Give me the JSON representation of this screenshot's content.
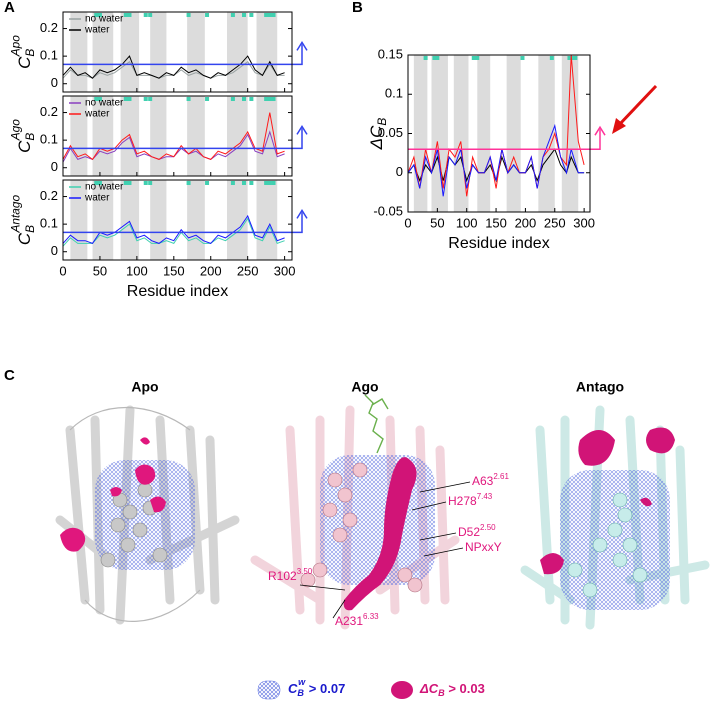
{
  "chart_data": [
    {
      "type": "line",
      "ylabel": {
        "main": "C",
        "sub": "B",
        "sup": "Apo"
      },
      "x": [
        0,
        10,
        20,
        30,
        40,
        50,
        60,
        70,
        80,
        90,
        100,
        110,
        120,
        130,
        140,
        150,
        160,
        170,
        180,
        190,
        200,
        210,
        220,
        230,
        240,
        250,
        260,
        270,
        280,
        290,
        300
      ],
      "series": [
        {
          "name": "no water",
          "color": "#9aa3a3",
          "values": [
            0.02,
            0.05,
            0.03,
            0.03,
            0.02,
            0.04,
            0.03,
            0.04,
            0.06,
            0.08,
            0.03,
            0.03,
            0.03,
            0.02,
            0.03,
            0.03,
            0.05,
            0.03,
            0.04,
            0.03,
            0.02,
            0.03,
            0.03,
            0.04,
            0.06,
            0.08,
            0.04,
            0.03,
            0.07,
            0.03,
            0.03
          ]
        },
        {
          "name": "water",
          "color": "#000000",
          "values": [
            0.03,
            0.06,
            0.03,
            0.04,
            0.02,
            0.05,
            0.04,
            0.05,
            0.07,
            0.1,
            0.03,
            0.04,
            0.03,
            0.02,
            0.04,
            0.03,
            0.06,
            0.04,
            0.05,
            0.03,
            0.02,
            0.04,
            0.03,
            0.05,
            0.07,
            0.1,
            0.05,
            0.03,
            0.08,
            0.03,
            0.04
          ]
        }
      ],
      "xlim": [
        0,
        310
      ],
      "ylim": [
        -0.03,
        0.26
      ],
      "xticks": [
        0,
        50,
        100,
        150,
        200,
        250,
        300
      ],
      "yticks": [
        0,
        0.1,
        0.2
      ],
      "helix_bands": [
        [
          10,
          33
        ],
        [
          40,
          68
        ],
        [
          78,
          103
        ],
        [
          118,
          140
        ],
        [
          168,
          192
        ],
        [
          222,
          250
        ],
        [
          262,
          290
        ]
      ],
      "site_residues": [
        45,
        50,
        85,
        90,
        112,
        118,
        170,
        195,
        230,
        245,
        255,
        275,
        280,
        285
      ],
      "site_color": "#40d0b0",
      "band_color": "#dcdcdc",
      "threshold": 0.07,
      "threshold_color": "#3344ee"
    },
    {
      "type": "line",
      "ylabel": {
        "main": "C",
        "sub": "B",
        "sup": "Ago"
      },
      "x": [
        0,
        10,
        20,
        30,
        40,
        50,
        60,
        70,
        80,
        90,
        100,
        110,
        120,
        130,
        140,
        150,
        160,
        170,
        180,
        190,
        200,
        210,
        220,
        230,
        240,
        250,
        260,
        270,
        280,
        290,
        300
      ],
      "series": [
        {
          "name": "no water",
          "color": "#8a3fc0",
          "values": [
            0.02,
            0.07,
            0.03,
            0.04,
            0.03,
            0.06,
            0.05,
            0.06,
            0.09,
            0.11,
            0.04,
            0.05,
            0.04,
            0.03,
            0.04,
            0.04,
            0.07,
            0.05,
            0.06,
            0.04,
            0.03,
            0.05,
            0.04,
            0.06,
            0.08,
            0.12,
            0.06,
            0.05,
            0.13,
            0.04,
            0.05
          ]
        },
        {
          "name": "water",
          "color": "#ff1a1a",
          "values": [
            0.03,
            0.08,
            0.04,
            0.05,
            0.03,
            0.07,
            0.06,
            0.07,
            0.1,
            0.12,
            0.05,
            0.06,
            0.04,
            0.03,
            0.05,
            0.04,
            0.08,
            0.05,
            0.07,
            0.04,
            0.03,
            0.06,
            0.05,
            0.07,
            0.09,
            0.13,
            0.07,
            0.06,
            0.2,
            0.05,
            0.06
          ]
        }
      ],
      "xlim": [
        0,
        310
      ],
      "ylim": [
        -0.03,
        0.26
      ],
      "xticks": [
        0,
        50,
        100,
        150,
        200,
        250,
        300
      ],
      "yticks": [
        0,
        0.1,
        0.2
      ],
      "helix_bands": [
        [
          10,
          33
        ],
        [
          40,
          68
        ],
        [
          78,
          103
        ],
        [
          118,
          140
        ],
        [
          168,
          192
        ],
        [
          222,
          250
        ],
        [
          262,
          290
        ]
      ],
      "site_residues": [
        45,
        50,
        85,
        90,
        112,
        118,
        170,
        195,
        230,
        245,
        255,
        275,
        280,
        285
      ],
      "site_color": "#40d0b0",
      "band_color": "#dcdcdc",
      "threshold": 0.07,
      "threshold_color": "#3344ee"
    },
    {
      "type": "line",
      "ylabel": {
        "main": "C",
        "sub": "B",
        "sup": "Antago"
      },
      "xlabel": "Residue index",
      "x": [
        0,
        10,
        20,
        30,
        40,
        50,
        60,
        70,
        80,
        90,
        100,
        110,
        120,
        130,
        140,
        150,
        160,
        170,
        180,
        190,
        200,
        210,
        220,
        230,
        240,
        250,
        260,
        270,
        280,
        290,
        300
      ],
      "series": [
        {
          "name": "no water",
          "color": "#40d0b0",
          "values": [
            0.02,
            0.05,
            0.03,
            0.03,
            0.03,
            0.06,
            0.05,
            0.06,
            0.08,
            0.1,
            0.04,
            0.05,
            0.03,
            0.03,
            0.04,
            0.03,
            0.07,
            0.04,
            0.05,
            0.03,
            0.03,
            0.05,
            0.04,
            0.06,
            0.08,
            0.12,
            0.05,
            0.04,
            0.09,
            0.03,
            0.04
          ]
        },
        {
          "name": "water",
          "color": "#1a1aff",
          "values": [
            0.03,
            0.06,
            0.04,
            0.04,
            0.03,
            0.07,
            0.06,
            0.07,
            0.09,
            0.11,
            0.05,
            0.06,
            0.04,
            0.03,
            0.05,
            0.04,
            0.08,
            0.05,
            0.06,
            0.04,
            0.03,
            0.06,
            0.05,
            0.07,
            0.09,
            0.13,
            0.06,
            0.05,
            0.1,
            0.04,
            0.05
          ]
        }
      ],
      "xlim": [
        0,
        310
      ],
      "ylim": [
        -0.03,
        0.26
      ],
      "xticks": [
        0,
        50,
        100,
        150,
        200,
        250,
        300
      ],
      "yticks": [
        0,
        0.1,
        0.2
      ],
      "helix_bands": [
        [
          10,
          33
        ],
        [
          40,
          68
        ],
        [
          78,
          103
        ],
        [
          118,
          140
        ],
        [
          168,
          192
        ],
        [
          222,
          250
        ],
        [
          262,
          290
        ]
      ],
      "site_residues": [
        45,
        50,
        85,
        90,
        112,
        118,
        170,
        195,
        230,
        245,
        255,
        275,
        280,
        285
      ],
      "site_color": "#40d0b0",
      "band_color": "#dcdcdc",
      "threshold": 0.07,
      "threshold_color": "#3344ee"
    },
    {
      "type": "line",
      "ylabel": {
        "main": "ΔC",
        "sub": "B"
      },
      "xlabel": "Residue index",
      "x": [
        0,
        10,
        20,
        30,
        40,
        50,
        60,
        70,
        80,
        90,
        100,
        110,
        120,
        130,
        140,
        150,
        160,
        170,
        180,
        190,
        200,
        210,
        220,
        230,
        240,
        250,
        260,
        270,
        278,
        290,
        300
      ],
      "series": [
        {
          "color": "#000000",
          "values": [
            0,
            0.01,
            -0.01,
            0.01,
            0,
            0.02,
            -0.01,
            0.02,
            0.01,
            0.02,
            -0.01,
            0.01,
            0,
            0,
            0.01,
            -0.01,
            0.02,
            0,
            0.01,
            0,
            0,
            0.01,
            -0.01,
            0.01,
            0.02,
            0.03,
            0.01,
            0,
            0.02,
            0,
            0
          ]
        },
        {
          "color": "#ff1a1a",
          "values": [
            0,
            0.02,
            -0.02,
            0.03,
            0,
            0.04,
            -0.02,
            0.03,
            0.02,
            0.04,
            -0.03,
            0.02,
            0,
            0,
            0.02,
            -0.02,
            0.03,
            0,
            0.02,
            0,
            0,
            0.02,
            -0.02,
            0.02,
            0.03,
            0.05,
            0.02,
            0.01,
            0.15,
            0.04,
            0.01
          ]
        },
        {
          "color": "#1a1aff",
          "values": [
            0,
            0.01,
            -0.02,
            0.02,
            0,
            0.03,
            -0.03,
            0.02,
            0.01,
            0.03,
            -0.02,
            0.01,
            0,
            0,
            0.02,
            -0.01,
            0.03,
            0,
            0.01,
            0,
            0,
            0.02,
            -0.02,
            0.02,
            0.04,
            0.06,
            0.02,
            0,
            0.03,
            0,
            0
          ]
        }
      ],
      "xlim": [
        0,
        310
      ],
      "ylim": [
        -0.05,
        0.15
      ],
      "xticks": [
        0,
        50,
        100,
        150,
        200,
        250,
        300
      ],
      "yticks": [
        -0.05,
        0,
        0.05,
        0.1,
        0.15
      ],
      "helix_bands": [
        [
          10,
          33
        ],
        [
          40,
          68
        ],
        [
          78,
          103
        ],
        [
          118,
          140
        ],
        [
          168,
          192
        ],
        [
          222,
          250
        ],
        [
          262,
          290
        ]
      ],
      "site_residues": [
        30,
        45,
        50,
        112,
        118,
        195,
        245,
        275,
        280,
        285
      ],
      "site_color": "#40d0b0",
      "band_color": "#dcdcdc",
      "threshold": 0.03,
      "threshold_color": "#ff3399"
    }
  ],
  "figure": {
    "panel_labels": [
      "A",
      "B",
      "C"
    ],
    "structures": [
      {
        "title": "Apo"
      },
      {
        "title": "Ago",
        "labels": [
          {
            "name": "A63",
            "sup": "2.61"
          },
          {
            "name": "H278",
            "sup": "7.43"
          },
          {
            "name": "D52",
            "sup": "2.50"
          },
          {
            "name": "NPxxY"
          },
          {
            "name": "R102",
            "sup": "3.50"
          },
          {
            "name": "A231",
            "sup": "6.33"
          }
        ]
      },
      {
        "title": "Antago"
      }
    ],
    "legend": [
      {
        "main": "C",
        "sub": "B",
        "sup": "w",
        "rest": " > 0.07"
      },
      {
        "main": "ΔC",
        "sub": "B",
        "rest": " > 0.03"
      }
    ]
  }
}
